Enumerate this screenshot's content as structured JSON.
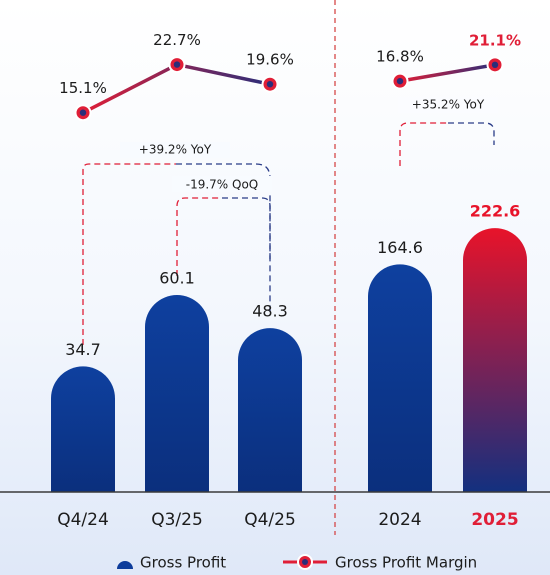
{
  "chart_data": [
    {
      "type": "bar",
      "categories": [
        "Q4/24",
        "Q3/25",
        "Q4/25"
      ],
      "series": [
        {
          "name": "Gross Profit",
          "values": [
            34.7,
            60.1,
            48.3
          ],
          "colors": [
            "#0d3c9b",
            "#0d3c9b",
            "#0d3c9b"
          ]
        },
        {
          "name": "Gross Profit Margin",
          "type": "line",
          "axis": "y2",
          "values": [
            15.1,
            22.7,
            19.6
          ],
          "value_labels": [
            "15.1%",
            "22.7%",
            "19.6%"
          ],
          "colors": [
            "#e01e37",
            "#2a2e7a"
          ]
        }
      ],
      "ylim": [
        -10,
        90
      ],
      "y2lim": [
        10,
        25
      ],
      "annotations": [
        "+39.2% YoY",
        "-19.7% QoQ"
      ]
    },
    {
      "type": "bar",
      "categories": [
        "2024",
        "2025"
      ],
      "category_colors": [
        "#1c1c1c",
        "#e01e37"
      ],
      "series": [
        {
          "name": "Gross Profit",
          "values": [
            164.6,
            222.6
          ],
          "colors": [
            "#0d3c9b",
            "#e8132a"
          ]
        },
        {
          "name": "Gross Profit Margin",
          "type": "line",
          "axis": "y2",
          "values": [
            16.8,
            21.1
          ],
          "value_labels": [
            "16.8%",
            "21.1%"
          ],
          "colors": [
            "#e01e37",
            "#2a2e7a"
          ],
          "label_colors": [
            "#1c1c1c",
            "#e01e37"
          ]
        }
      ],
      "ylim": [
        -200,
        250
      ],
      "y2lim": [
        0,
        25
      ],
      "annotations": [
        "+35.2% YoY"
      ]
    }
  ]
}
